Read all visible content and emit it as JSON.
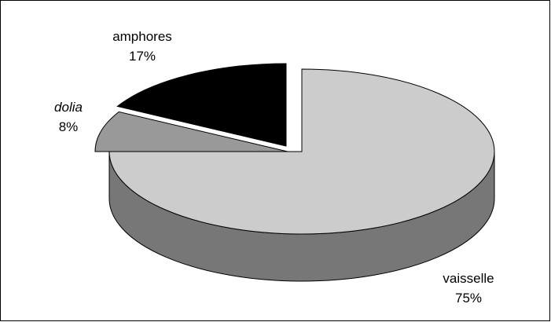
{
  "chart_data": {
    "type": "pie",
    "three_d": true,
    "exploded": true,
    "title": "",
    "slices": [
      {
        "label": "vaisselle",
        "percent_label": "75%",
        "value": 75,
        "color": "#cccccc",
        "side_color": "#777777",
        "italic": false
      },
      {
        "label": "dolia",
        "percent_label": "8%",
        "value": 8,
        "color": "#999999",
        "side_color": "#555555",
        "italic": true
      },
      {
        "label": "amphores",
        "percent_label": "17%",
        "value": 17,
        "color": "#000000",
        "side_color": "#000000",
        "italic": false
      }
    ],
    "legend": "none",
    "border": true
  }
}
